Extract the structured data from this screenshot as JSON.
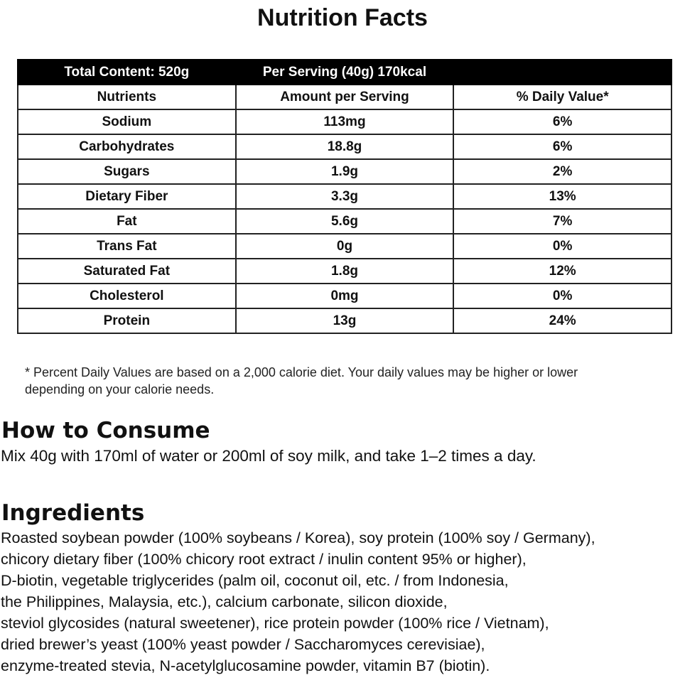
{
  "title": "Nutrition Facts",
  "table": {
    "banner": [
      "Total Content: 520g",
      "Per Serving (40g) 170kcal"
    ],
    "header": [
      "Nutrients",
      "Amount per Serving",
      "% Daily Value*"
    ],
    "rows": [
      [
        "Sodium",
        "113mg",
        "6%"
      ],
      [
        "Carbohydrates",
        "18.8g",
        "6%"
      ],
      [
        "Sugars",
        "1.9g",
        "2%"
      ],
      [
        "Dietary Fiber",
        "3.3g",
        "13%"
      ],
      [
        "Fat",
        "5.6g",
        "7%"
      ],
      [
        "Trans Fat",
        "0g",
        "0%"
      ],
      [
        "Saturated Fat",
        "1.8g",
        "12%"
      ],
      [
        "Cholesterol",
        "0mg",
        "0%"
      ],
      [
        "Protein",
        "13g",
        "24%"
      ]
    ]
  },
  "footnote": [
    "* Percent Daily Values are based on a 2,000 calorie diet. Your daily values may be higher or lower",
    "depending on your calorie needs."
  ],
  "consume": {
    "heading": "How to Consume",
    "text": "Mix 40g with 170ml of water or 200ml of soy milk, and take 1–2 times a day."
  },
  "ingredients": {
    "heading": "Ingredients",
    "lines": [
      "Roasted soybean powder (100% soybeans / Korea), soy protein (100% soy / Germany),",
      "chicory dietary fiber (100% chicory root extract / inulin content 95% or higher),",
      "D-biotin, vegetable triglycerides (palm oil, coconut oil, etc. / from Indonesia,",
      "the Philippines, Malaysia, etc.), calcium carbonate, silicon dioxide,",
      "steviol glycosides (natural sweetener), rice protein powder (100% rice / Vietnam),",
      "dried brewer’s yeast (100% yeast powder / Saccharomyces cerevisiae),",
      "enzyme-treated stevia, N-acetylglucosamine powder, vitamin B7 (biotin)."
    ]
  }
}
